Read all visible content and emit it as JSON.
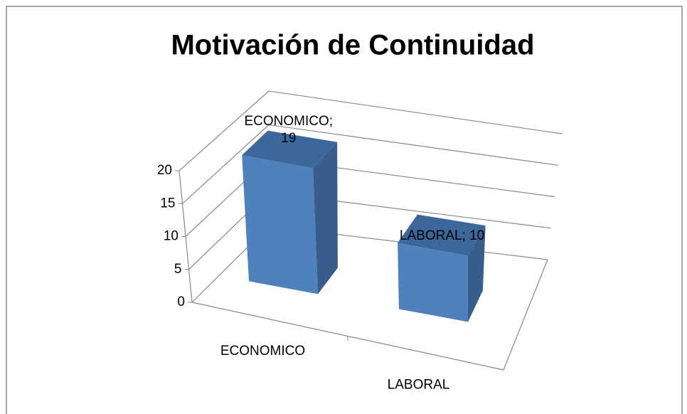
{
  "chart_data": {
    "type": "bar3d",
    "title": "Motivación de Continuidad",
    "categories": [
      "ECONOMICO",
      "LABORAL"
    ],
    "values": [
      19,
      10
    ],
    "value_labels": [
      "ECONOMICO; 19",
      "LABORAL; 10"
    ],
    "color": "#4f81bd",
    "ylim": [
      0,
      20
    ],
    "yticks": [
      0,
      5,
      10,
      15,
      20
    ],
    "grid": true
  }
}
